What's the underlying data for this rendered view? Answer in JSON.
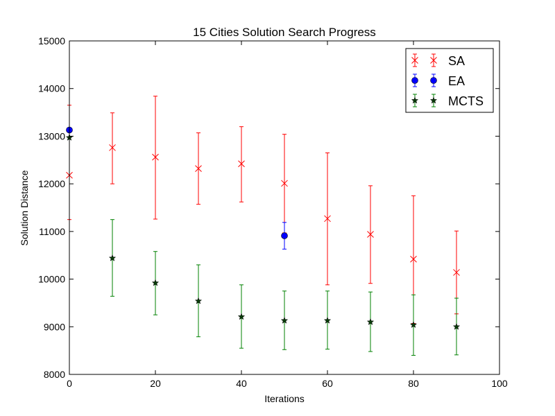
{
  "chart_data": {
    "type": "scatter",
    "title": "15 Cities Solution Search Progress",
    "xlabel": "Iterations",
    "ylabel": "Solution Distance",
    "xlim": [
      0,
      100
    ],
    "ylim": [
      8000,
      15000
    ],
    "xticks": [
      "0",
      "20",
      "40",
      "60",
      "80",
      "100"
    ],
    "yticks": [
      "8000",
      "9000",
      "10000",
      "11000",
      "12000",
      "13000",
      "14000",
      "15000"
    ],
    "grid": false,
    "legend_position": "top-right",
    "series": [
      {
        "name": "SA",
        "color": "#ff0000",
        "marker": "x",
        "x": [
          0,
          10,
          20,
          30,
          40,
          50,
          60,
          70,
          80,
          90
        ],
        "y": [
          12180,
          12760,
          12560,
          12320,
          12420,
          12010,
          11270,
          10940,
          10420,
          10140
        ],
        "err_low": [
          11250,
          12000,
          11260,
          11570,
          11620,
          10970,
          9880,
          9910,
          9070,
          9270
        ],
        "err_high": [
          13650,
          13490,
          13840,
          13070,
          13200,
          13040,
          12650,
          11960,
          11750,
          11010
        ]
      },
      {
        "name": "EA",
        "color": "#0000ff",
        "marker": "o",
        "x": [
          0,
          50
        ],
        "y": [
          13130,
          10910
        ],
        "err_low": [
          13130,
          10630
        ],
        "err_high": [
          13130,
          11190
        ]
      },
      {
        "name": "MCTS",
        "color": "#008000",
        "marker": "star",
        "x": [
          0,
          10,
          20,
          30,
          40,
          50,
          60,
          70,
          80,
          90
        ],
        "y": [
          12970,
          10440,
          9920,
          9540,
          9210,
          9130,
          9130,
          9100,
          9040,
          9000
        ],
        "err_low": [
          12970,
          9640,
          9250,
          8790,
          8550,
          8520,
          8530,
          8480,
          8400,
          8410
        ],
        "err_high": [
          12970,
          11250,
          10580,
          10300,
          9880,
          9750,
          9750,
          9730,
          9670,
          9600
        ]
      }
    ]
  }
}
